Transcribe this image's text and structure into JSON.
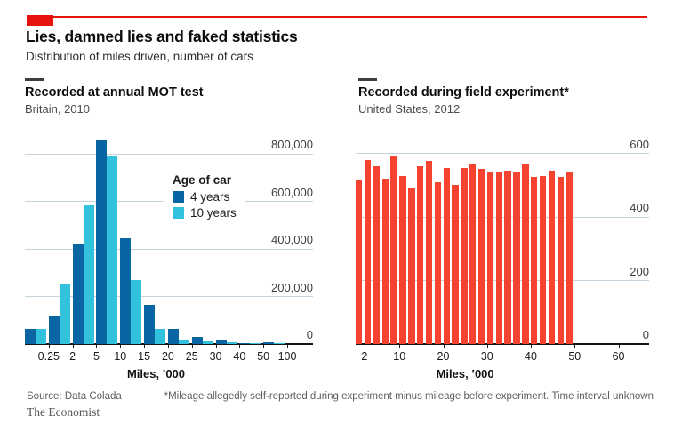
{
  "header": {
    "title": "Lies, damned lies and faked statistics",
    "subtitle": "Distribution of miles driven, number of cars"
  },
  "panels": [
    {
      "title": "Recorded at annual MOT test",
      "subtitle": "Britain, 2010"
    },
    {
      "title": "Recorded during field experiment*",
      "subtitle": "United States, 2012"
    }
  ],
  "legend": {
    "title": "Age of car",
    "items": [
      {
        "label": "4 years",
        "color": "#0a66a2"
      },
      {
        "label": "10 years",
        "color": "#33c2dd"
      }
    ]
  },
  "footer": {
    "source": "Source: Data Colada",
    "note": "*Mileage allegedly self-reported during experiment minus mileage before experiment. Time interval unknown",
    "brand": "The Economist"
  },
  "colors": {
    "accent_red": "#e7130d",
    "bar_red": "#f6432f",
    "blue": "#0a66a2",
    "cyan": "#33c2dd",
    "gridline": "#c5d4dc",
    "axis": "#161616"
  },
  "chart_data": [
    {
      "type": "bar",
      "title": "Recorded at annual MOT test",
      "subtitle": "Britain, 2010",
      "xlabel": "Miles, ’000",
      "ylabel": "Number of cars",
      "legend_position": "inside-top-right",
      "grid": true,
      "categories": [
        "0.25",
        "2",
        "5",
        "10",
        "15",
        "20",
        "25",
        "30",
        "40",
        "50",
        "100"
      ],
      "series": [
        {
          "name": "4 years",
          "color": "#0a66a2",
          "values": [
            65000,
            115000,
            420000,
            860000,
            445000,
            165000,
            65000,
            30000,
            20000,
            5000,
            8000
          ]
        },
        {
          "name": "10 years",
          "color": "#33c2dd",
          "values": [
            65000,
            255000,
            585000,
            790000,
            270000,
            65000,
            15000,
            10000,
            6000,
            3000,
            4000
          ]
        }
      ],
      "ylim": [
        0,
        886000
      ],
      "yticks": [
        {
          "label": "800,000",
          "value": 800000
        },
        {
          "label": "600,000",
          "value": 600000
        },
        {
          "label": "400,000",
          "value": 400000
        },
        {
          "label": "200,000",
          "value": 200000
        },
        {
          "label": "0",
          "value": 0
        }
      ]
    },
    {
      "type": "bar",
      "title": "Recorded during field experiment*",
      "subtitle": "United States, 2012",
      "xlabel": "Miles, ’000",
      "ylabel": "Number of cars",
      "grid": true,
      "bar_color": "#f6432f",
      "bin_width_thousand_miles": 2,
      "bins_span": [
        0,
        50
      ],
      "values": [
        515,
        580,
        560,
        520,
        590,
        530,
        490,
        560,
        575,
        510,
        555,
        500,
        555,
        565,
        550,
        540,
        540,
        545,
        540,
        565,
        525,
        530,
        545,
        525,
        540
      ],
      "ylim": [
        0,
        663
      ],
      "xlim": [
        0,
        67
      ],
      "yticks": [
        {
          "label": "600",
          "value": 600
        },
        {
          "label": "400",
          "value": 400
        },
        {
          "label": "200",
          "value": 200
        },
        {
          "label": "0",
          "value": 0
        }
      ],
      "xticks": [
        {
          "label": "2",
          "value": 2
        },
        {
          "label": "10",
          "value": 10
        },
        {
          "label": "20",
          "value": 20
        },
        {
          "label": "30",
          "value": 30
        },
        {
          "label": "40",
          "value": 40
        },
        {
          "label": "50",
          "value": 50
        },
        {
          "label": "60",
          "value": 60
        }
      ]
    }
  ]
}
